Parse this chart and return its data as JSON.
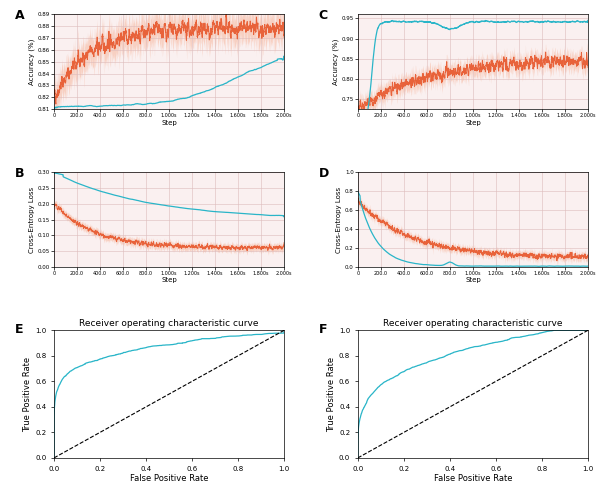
{
  "orange_color": "#E8623A",
  "orange_fill_color": "#F5A98A",
  "cyan_color": "#29B5C8",
  "bg_color": "#FFFFFF",
  "grid_color": "#DDBBBB",
  "panel_labels": [
    "A",
    "B",
    "C",
    "D",
    "E",
    "F"
  ],
  "roc_title": "Receiver operating characteristic curve",
  "xlabel_step": "Step",
  "ylabel_accuracy": "Accuracy (%)",
  "ylabel_loss": "Cross-Entropy Loss",
  "ylabel_tpr": "True Positive Rate",
  "xlabel_fpr": "False Positive Rate",
  "acc_A_ylim": [
    0.81,
    0.89
  ],
  "acc_C_ylim": [
    0.725,
    0.96
  ],
  "loss_B_ylim": [
    0.0,
    0.3
  ],
  "loss_D_ylim": [
    0.0,
    1.0
  ],
  "xtick_vals": [
    0,
    200,
    400,
    600,
    800,
    1000,
    1200,
    1400,
    1600,
    1800,
    2000
  ],
  "xtick_labels": [
    "0",
    "200.0",
    "400.0",
    "600.0",
    "800.0",
    "1.000s",
    "1.200s",
    "1.400s",
    "1.600s",
    "1.800s",
    "2.000s"
  ]
}
